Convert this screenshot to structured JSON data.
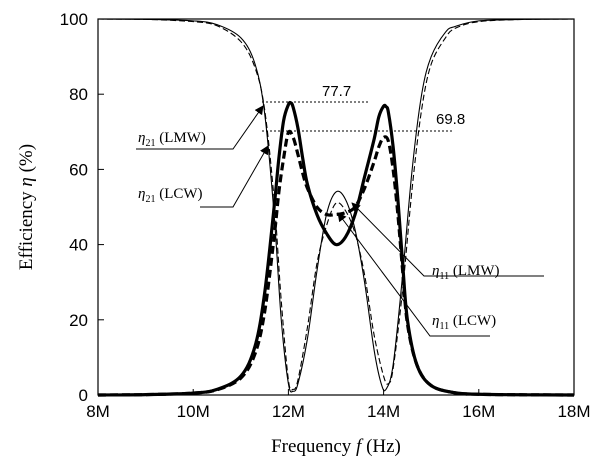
{
  "chart_data": {
    "type": "line",
    "xlabel": {
      "main": "Frequency ",
      "var": "f",
      "unit": " (Hz)"
    },
    "ylabel": {
      "main": "Efficiency ",
      "var": "η",
      "unit": " (%)"
    },
    "xlim_hz": [
      8000000,
      18000000
    ],
    "ylim": [
      0,
      100
    ],
    "x_ticks": [
      {
        "value": 8000000,
        "label": "8M"
      },
      {
        "value": 10000000,
        "label": "10M"
      },
      {
        "value": 12000000,
        "label": "12M"
      },
      {
        "value": 14000000,
        "label": "14M"
      },
      {
        "value": 16000000,
        "label": "16M"
      },
      {
        "value": 18000000,
        "label": "18M"
      }
    ],
    "y_ticks": [
      {
        "value": 0,
        "label": "0"
      },
      {
        "value": 20,
        "label": "20"
      },
      {
        "value": 40,
        "label": "40"
      },
      {
        "value": 60,
        "label": "60"
      },
      {
        "value": 80,
        "label": "80"
      },
      {
        "value": 100,
        "label": "100"
      }
    ],
    "grid": false,
    "series": [
      {
        "name": "η21 (LMW)",
        "style": "thick-solid",
        "x_mhz": [
          8,
          9,
          10,
          10.5,
          11,
          11.3,
          11.5,
          11.7,
          11.8,
          11.9,
          12,
          12.05,
          12.1,
          12.2,
          12.3,
          12.4,
          12.6,
          12.8,
          13,
          13.2,
          13.4,
          13.6,
          13.8,
          13.9,
          14,
          14.05,
          14.1,
          14.2,
          14.3,
          14.4,
          14.5,
          14.7,
          15,
          15.5,
          16,
          17,
          18
        ],
        "values": [
          0,
          0.1,
          0.5,
          1.5,
          5,
          13,
          27,
          50,
          63,
          73,
          77.2,
          77.7,
          76.5,
          71,
          63,
          56,
          48,
          43,
          40,
          42,
          48,
          58,
          68,
          74,
          76.8,
          76.7,
          75.2,
          66,
          52,
          35,
          20,
          8,
          2.5,
          0.6,
          0.2,
          0.05,
          0
        ]
      },
      {
        "name": "η21 (LCW)",
        "style": "thick-dashed",
        "x_mhz": [
          8,
          9,
          10,
          10.5,
          11,
          11.3,
          11.5,
          11.7,
          11.8,
          11.9,
          12,
          12.1,
          12.2,
          12.3,
          12.4,
          12.6,
          12.8,
          13,
          13.2,
          13.4,
          13.6,
          13.8,
          13.9,
          14,
          14.1,
          14.2,
          14.3,
          14.4,
          14.5,
          14.7,
          15,
          15.5,
          16,
          17,
          18
        ],
        "values": [
          0,
          0.1,
          0.5,
          1.4,
          4.5,
          11,
          22,
          42,
          54,
          63,
          69.8,
          68.5,
          64,
          59,
          55,
          50,
          48,
          48,
          48.5,
          50,
          55,
          62,
          66,
          68.5,
          67.5,
          60,
          48,
          33,
          19,
          8,
          2.5,
          0.6,
          0.2,
          0.05,
          0
        ]
      },
      {
        "name": "η11 (LMW)",
        "style": "thin-solid",
        "x_mhz": [
          8,
          9,
          10,
          10.5,
          11,
          11.3,
          11.5,
          11.7,
          11.85,
          12,
          12.1,
          12.2,
          12.4,
          12.6,
          12.8,
          13,
          13.2,
          13.4,
          13.6,
          13.8,
          13.95,
          14.05,
          14.2,
          14.4,
          14.6,
          14.8,
          15,
          15.3,
          15.5,
          16,
          17,
          18
        ],
        "values": [
          100,
          99.9,
          99.5,
          98.5,
          95,
          88,
          75,
          48,
          20,
          3,
          1,
          3,
          15,
          33,
          48,
          54,
          52,
          44,
          30,
          12,
          3,
          1.5,
          8,
          32,
          60,
          80,
          90,
          96.5,
          98,
          99.5,
          99.9,
          100
        ]
      },
      {
        "name": "η11 (LCW)",
        "style": "thin-dashed",
        "x_mhz": [
          8,
          9,
          10,
          10.5,
          11,
          11.3,
          11.5,
          11.7,
          11.85,
          12,
          12.1,
          12.2,
          12.4,
          12.6,
          12.8,
          13,
          13.2,
          13.4,
          13.6,
          13.8,
          14,
          14.1,
          14.2,
          14.4,
          14.6,
          14.8,
          15,
          15.3,
          15.5,
          16,
          17,
          18
        ],
        "values": [
          100,
          99.9,
          99.3,
          98.2,
          94,
          87,
          76,
          52,
          25,
          4,
          1.5,
          4,
          18,
          35,
          45,
          51,
          49,
          43,
          32,
          16,
          5,
          3,
          7,
          28,
          55,
          76,
          88,
          95,
          97.5,
          99.3,
          99.9,
          100
        ]
      }
    ],
    "annotations": {
      "peak_lmw_value": "77.7",
      "peak_lcw_value": "69.8",
      "labels": [
        {
          "symbol": "η",
          "sub": "21",
          "text": " (LMW)"
        },
        {
          "symbol": "η",
          "sub": "21",
          "text": " (LCW)"
        },
        {
          "symbol": "η",
          "sub": "11",
          "text": " (LMW)"
        },
        {
          "symbol": "η",
          "sub": "11",
          "text": " (LCW)"
        }
      ]
    }
  }
}
